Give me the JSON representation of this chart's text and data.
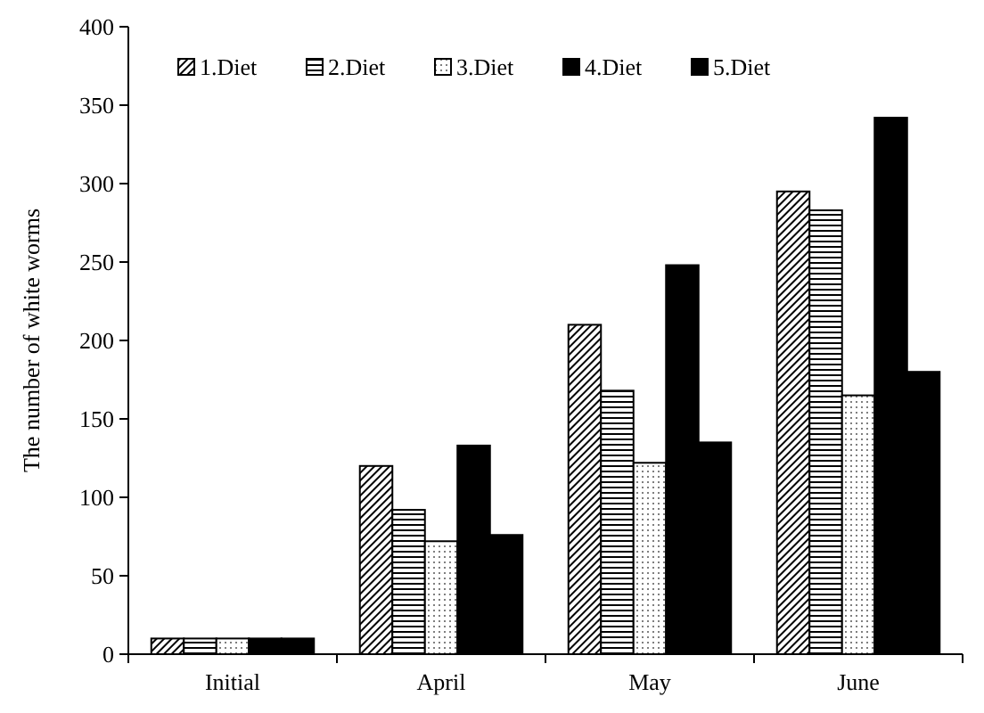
{
  "chart_data": {
    "type": "bar",
    "ylabel": "The number of white worms",
    "categories": [
      "Initial",
      "April",
      "May",
      "June"
    ],
    "series": [
      {
        "name": "1.Diet",
        "color": "#000000",
        "values": [
          10,
          120,
          210,
          295
        ]
      },
      {
        "name": "2.Diet",
        "color": "#000000",
        "values": [
          10,
          92,
          168,
          283
        ]
      },
      {
        "name": "3.Diet",
        "color": "#000000",
        "values": [
          10,
          72,
          122,
          165
        ]
      },
      {
        "name": "4.Diet",
        "color": "#000000",
        "values": [
          10,
          133,
          248,
          342
        ]
      },
      {
        "name": "5.Diet",
        "color": "#000000",
        "values": [
          10,
          76,
          135,
          180
        ]
      }
    ],
    "ylim": [
      0,
      400
    ],
    "yticks": [
      0,
      50,
      100,
      150,
      200,
      250,
      300,
      350,
      400
    ],
    "grid": false,
    "legend": "top"
  }
}
